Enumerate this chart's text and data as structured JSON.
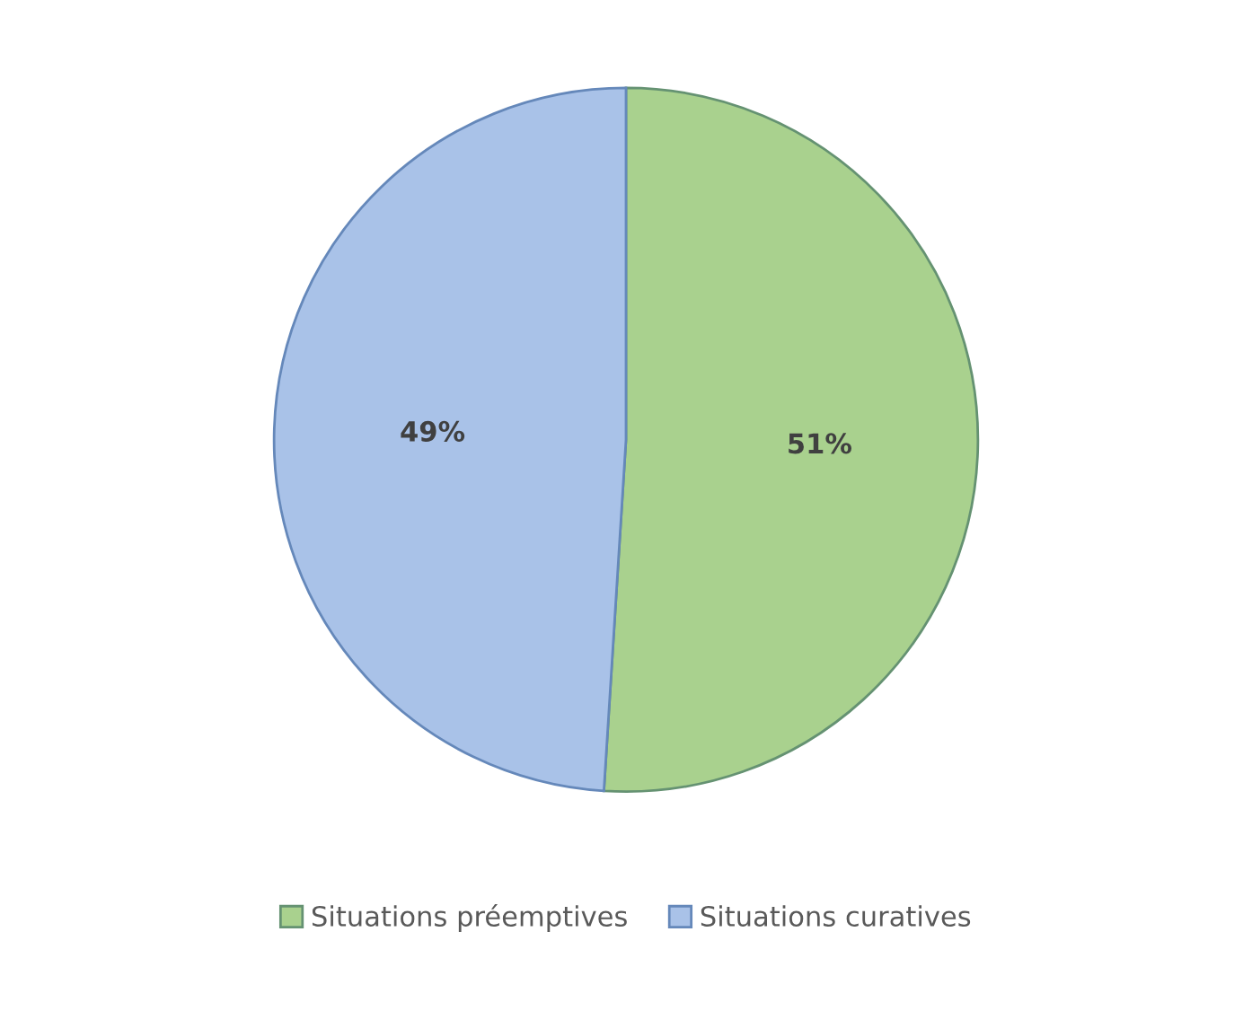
{
  "chart_data": {
    "type": "pie",
    "categories": [
      "Situations préemptives",
      "Situations curatives"
    ],
    "values": [
      51,
      49
    ],
    "colors": [
      "#a9d18e",
      "#a9c2e8"
    ],
    "data_labels": true,
    "value_labels": [
      "51%",
      "49%"
    ],
    "legend": "bottom"
  }
}
